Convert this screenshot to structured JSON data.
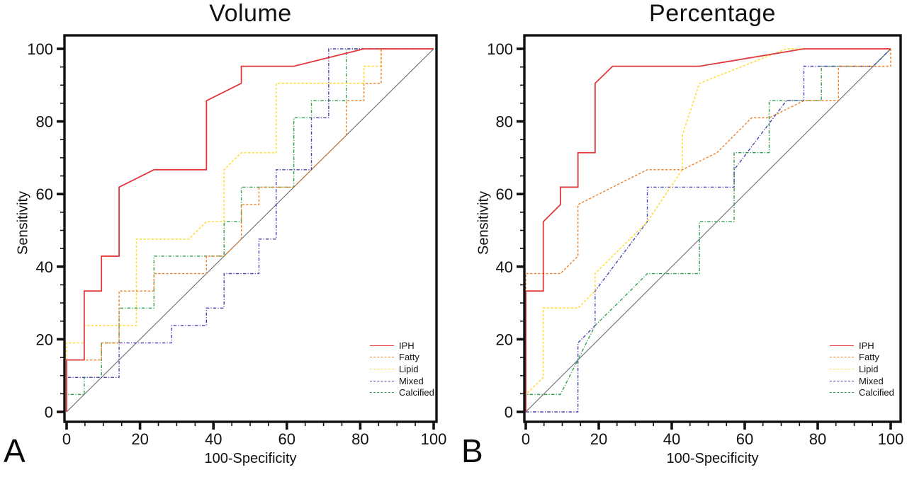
{
  "figure": {
    "panels": [
      {
        "letter": "A"
      },
      {
        "letter": "B"
      }
    ]
  },
  "chart_data": [
    {
      "type": "line",
      "subtype": "roc-step-curves",
      "title": "Volume",
      "xlabel": "100-Specificity",
      "ylabel": "Sensitivity",
      "xlim": [
        0,
        100
      ],
      "ylim": [
        0,
        100
      ],
      "x_ticks": [
        0,
        20,
        40,
        60,
        80,
        100
      ],
      "y_ticks": [
        0,
        20,
        40,
        60,
        80,
        100
      ],
      "minor_tick_step": 5,
      "grid": false,
      "legend_position": "lower right",
      "reference_line": {
        "name": "chance-diagonal",
        "color": "#5f5f6b",
        "points": [
          [
            0,
            0
          ],
          [
            100,
            100
          ]
        ]
      },
      "series": [
        {
          "name": "IPH",
          "color": "#e2383c",
          "style": "solid",
          "points": [
            [
              0,
              0
            ],
            [
              0,
              14.3
            ],
            [
              4.8,
              14.3
            ],
            [
              4.8,
              33.3
            ],
            [
              9.5,
              33.3
            ],
            [
              9.5,
              42.9
            ],
            [
              14.3,
              42.9
            ],
            [
              14.3,
              61.9
            ],
            [
              23.8,
              66.7
            ],
            [
              38.1,
              66.7
            ],
            [
              38.1,
              85.7
            ],
            [
              47.6,
              90.5
            ],
            [
              47.6,
              95.2
            ],
            [
              61.9,
              95.2
            ],
            [
              81,
              100
            ],
            [
              100,
              100
            ]
          ]
        },
        {
          "name": "Fatty",
          "color": "#ef7d22",
          "style": "dashed",
          "points": [
            [
              0,
              0
            ],
            [
              0,
              14.3
            ],
            [
              9.5,
              14.3
            ],
            [
              9.5,
              19
            ],
            [
              14.3,
              19
            ],
            [
              14.3,
              33.3
            ],
            [
              23.8,
              33.3
            ],
            [
              23.8,
              38.1
            ],
            [
              38.1,
              38.1
            ],
            [
              38.1,
              42.9
            ],
            [
              42.9,
              42.9
            ],
            [
              47.6,
              47.6
            ],
            [
              47.6,
              57.1
            ],
            [
              52.4,
              57.1
            ],
            [
              52.4,
              61.9
            ],
            [
              61.9,
              61.9
            ],
            [
              76.2,
              76.2
            ],
            [
              76.2,
              85.7
            ],
            [
              81,
              85.7
            ],
            [
              81,
              90.5
            ],
            [
              85.7,
              90.5
            ],
            [
              85.7,
              100
            ],
            [
              100,
              100
            ]
          ]
        },
        {
          "name": "Lipid",
          "color": "#ffdf48",
          "style": "dashed",
          "points": [
            [
              0,
              0
            ],
            [
              0,
              19
            ],
            [
              4.8,
              19
            ],
            [
              4.8,
              23.8
            ],
            [
              19,
              23.8
            ],
            [
              19,
              47.6
            ],
            [
              33.3,
              47.6
            ],
            [
              38.1,
              52.4
            ],
            [
              42.9,
              52.4
            ],
            [
              42.9,
              66.7
            ],
            [
              47.6,
              71.4
            ],
            [
              57.1,
              71.4
            ],
            [
              57.1,
              90.5
            ],
            [
              81,
              90.5
            ],
            [
              81,
              95.2
            ],
            [
              85.7,
              95.2
            ],
            [
              85.7,
              100
            ],
            [
              100,
              100
            ]
          ]
        },
        {
          "name": "Mixed",
          "color": "#4846b0",
          "style": "dash-dot",
          "points": [
            [
              0,
              0
            ],
            [
              0,
              9.5
            ],
            [
              14.3,
              9.5
            ],
            [
              14.3,
              19
            ],
            [
              28.6,
              19
            ],
            [
              28.6,
              23.8
            ],
            [
              38.1,
              23.8
            ],
            [
              38.1,
              28.6
            ],
            [
              42.9,
              28.6
            ],
            [
              42.9,
              38.1
            ],
            [
              52.4,
              38.1
            ],
            [
              52.4,
              47.6
            ],
            [
              57.1,
              47.6
            ],
            [
              57.1,
              66.7
            ],
            [
              66.7,
              66.7
            ],
            [
              66.7,
              81
            ],
            [
              71.4,
              81
            ],
            [
              71.4,
              100
            ],
            [
              100,
              100
            ]
          ]
        },
        {
          "name": "Calcified",
          "color": "#32a04e",
          "style": "dash-dot",
          "points": [
            [
              0,
              0
            ],
            [
              0,
              4.8
            ],
            [
              4.8,
              4.8
            ],
            [
              4.8,
              9.5
            ],
            [
              9.5,
              9.5
            ],
            [
              9.5,
              19
            ],
            [
              14.3,
              19
            ],
            [
              14.3,
              28.6
            ],
            [
              23.8,
              28.6
            ],
            [
              23.8,
              42.9
            ],
            [
              42.9,
              42.9
            ],
            [
              42.9,
              52.4
            ],
            [
              47.6,
              52.4
            ],
            [
              47.6,
              61.9
            ],
            [
              61.9,
              61.9
            ],
            [
              61.9,
              81
            ],
            [
              66.7,
              81
            ],
            [
              66.7,
              85.7
            ],
            [
              76.2,
              85.7
            ],
            [
              76.2,
              100
            ],
            [
              100,
              100
            ]
          ]
        }
      ]
    },
    {
      "type": "line",
      "subtype": "roc-step-curves",
      "title": "Percentage",
      "xlabel": "100-Specificity",
      "ylabel": "Sensitivity",
      "xlim": [
        0,
        100
      ],
      "ylim": [
        0,
        100
      ],
      "x_ticks": [
        0,
        20,
        40,
        60,
        80,
        100
      ],
      "y_ticks": [
        0,
        20,
        40,
        60,
        80,
        100
      ],
      "minor_tick_step": 5,
      "grid": false,
      "legend_position": "lower right",
      "reference_line": {
        "name": "chance-diagonal",
        "color": "#5f5f6b",
        "points": [
          [
            0,
            0
          ],
          [
            100,
            100
          ]
        ]
      },
      "series": [
        {
          "name": "IPH",
          "color": "#e2383c",
          "style": "solid",
          "points": [
            [
              0,
              0
            ],
            [
              0,
              33.3
            ],
            [
              4.8,
              33.3
            ],
            [
              4.8,
              52.4
            ],
            [
              9.5,
              57.1
            ],
            [
              9.5,
              61.9
            ],
            [
              14.3,
              61.9
            ],
            [
              14.3,
              71.4
            ],
            [
              19,
              71.4
            ],
            [
              19,
              90.5
            ],
            [
              23.8,
              95.2
            ],
            [
              47.6,
              95.2
            ],
            [
              76.2,
              100
            ],
            [
              100,
              100
            ]
          ]
        },
        {
          "name": "Fatty",
          "color": "#ef7d22",
          "style": "dashed",
          "points": [
            [
              0,
              0
            ],
            [
              0,
              38.1
            ],
            [
              9.5,
              38.1
            ],
            [
              14.3,
              42.9
            ],
            [
              14.3,
              57.1
            ],
            [
              33.3,
              66.7
            ],
            [
              42.9,
              66.7
            ],
            [
              52.4,
              71.4
            ],
            [
              61.9,
              81
            ],
            [
              66.7,
              81
            ],
            [
              76.2,
              85.7
            ],
            [
              85.7,
              85.7
            ],
            [
              85.7,
              95.2
            ],
            [
              100,
              95.2
            ],
            [
              100,
              100
            ]
          ]
        },
        {
          "name": "Lipid",
          "color": "#ffdf48",
          "style": "dashed",
          "points": [
            [
              0,
              0
            ],
            [
              0,
              4.8
            ],
            [
              4.8,
              9.5
            ],
            [
              4.8,
              28.6
            ],
            [
              14.3,
              28.6
            ],
            [
              19,
              33.3
            ],
            [
              19,
              38.1
            ],
            [
              33.3,
              52.4
            ],
            [
              42.9,
              66.7
            ],
            [
              42.9,
              76.2
            ],
            [
              47.6,
              90.5
            ],
            [
              71.4,
              100
            ],
            [
              100,
              100
            ]
          ]
        },
        {
          "name": "Mixed",
          "color": "#4846b0",
          "style": "dash-dot",
          "points": [
            [
              0,
              0
            ],
            [
              14.3,
              0
            ],
            [
              14.3,
              19
            ],
            [
              19,
              23.8
            ],
            [
              19,
              33.3
            ],
            [
              33.3,
              52.4
            ],
            [
              33.3,
              61.9
            ],
            [
              57.1,
              61.9
            ],
            [
              57.1,
              66.7
            ],
            [
              71.4,
              85.7
            ],
            [
              76.2,
              85.7
            ],
            [
              76.2,
              95.2
            ],
            [
              95.2,
              95.2
            ],
            [
              100,
              100
            ]
          ]
        },
        {
          "name": "Calcified",
          "color": "#32a04e",
          "style": "dash-dot",
          "points": [
            [
              0,
              0
            ],
            [
              0,
              4.8
            ],
            [
              9.5,
              4.8
            ],
            [
              19,
              23.8
            ],
            [
              28.6,
              33.3
            ],
            [
              33.3,
              38.1
            ],
            [
              47.6,
              38.1
            ],
            [
              47.6,
              52.4
            ],
            [
              57.1,
              52.4
            ],
            [
              57.1,
              71.4
            ],
            [
              66.7,
              71.4
            ],
            [
              66.7,
              85.7
            ],
            [
              81,
              85.7
            ],
            [
              81,
              95.2
            ],
            [
              95.2,
              95.2
            ],
            [
              100,
              100
            ]
          ]
        }
      ]
    }
  ]
}
